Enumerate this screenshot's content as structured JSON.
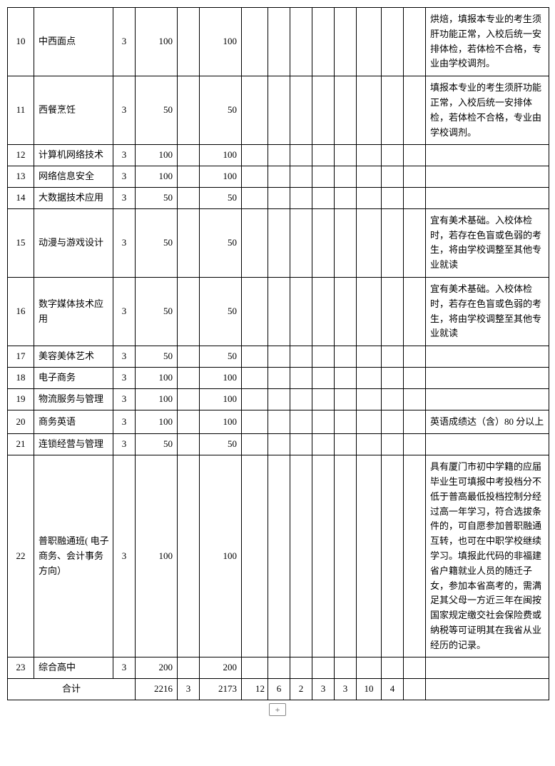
{
  "rows": [
    {
      "idx": "10",
      "name": "中西面点",
      "a": "3",
      "b": "100",
      "c": "",
      "d": "100",
      "e": "",
      "f": "",
      "g": "",
      "h": "",
      "i": "",
      "j": "",
      "k": "",
      "l": "",
      "remark": "烘焙，填报本专业的考生须肝功能正常，入校后统一安排体检，若体检不合格，专业由学校调剂。"
    },
    {
      "idx": "11",
      "name": "西餐烹饪",
      "a": "3",
      "b": "50",
      "c": "",
      "d": "50",
      "e": "",
      "f": "",
      "g": "",
      "h": "",
      "i": "",
      "j": "",
      "k": "",
      "l": "",
      "remark": "填报本专业的考生须肝功能正常，入校后统一安排体检，若体检不合格，专业由学校调剂。"
    },
    {
      "idx": "12",
      "name": "计算机网络技术",
      "a": "3",
      "b": "100",
      "c": "",
      "d": "100",
      "e": "",
      "f": "",
      "g": "",
      "h": "",
      "i": "",
      "j": "",
      "k": "",
      "l": "",
      "remark": ""
    },
    {
      "idx": "13",
      "name": "网络信息安全",
      "a": "3",
      "b": "100",
      "c": "",
      "d": "100",
      "e": "",
      "f": "",
      "g": "",
      "h": "",
      "i": "",
      "j": "",
      "k": "",
      "l": "",
      "remark": ""
    },
    {
      "idx": "14",
      "name": "大数据技术应用",
      "a": "3",
      "b": "50",
      "c": "",
      "d": "50",
      "e": "",
      "f": "",
      "g": "",
      "h": "",
      "i": "",
      "j": "",
      "k": "",
      "l": "",
      "remark": ""
    },
    {
      "idx": "15",
      "name": "动漫与游戏设计",
      "a": "3",
      "b": "50",
      "c": "",
      "d": "50",
      "e": "",
      "f": "",
      "g": "",
      "h": "",
      "i": "",
      "j": "",
      "k": "",
      "l": "",
      "remark": "宜有美术基础。入校体检时，若存在色盲或色弱的考生，将由学校调整至其他专业就读"
    },
    {
      "idx": "16",
      "name": "数字媒体技术应用",
      "a": "3",
      "b": "50",
      "c": "",
      "d": "50",
      "e": "",
      "f": "",
      "g": "",
      "h": "",
      "i": "",
      "j": "",
      "k": "",
      "l": "",
      "remark": "宜有美术基础。入校体检时，若存在色盲或色弱的考生，将由学校调整至其他专业就读"
    },
    {
      "idx": "17",
      "name": "美容美体艺术",
      "a": "3",
      "b": "50",
      "c": "",
      "d": "50",
      "e": "",
      "f": "",
      "g": "",
      "h": "",
      "i": "",
      "j": "",
      "k": "",
      "l": "",
      "remark": ""
    },
    {
      "idx": "18",
      "name": "电子商务",
      "a": "3",
      "b": "100",
      "c": "",
      "d": "100",
      "e": "",
      "f": "",
      "g": "",
      "h": "",
      "i": "",
      "j": "",
      "k": "",
      "l": "",
      "remark": ""
    },
    {
      "idx": "19",
      "name": "物流服务与管理",
      "a": "3",
      "b": "100",
      "c": "",
      "d": "100",
      "e": "",
      "f": "",
      "g": "",
      "h": "",
      "i": "",
      "j": "",
      "k": "",
      "l": "",
      "remark": ""
    },
    {
      "idx": "20",
      "name": "商务英语",
      "a": "3",
      "b": "100",
      "c": "",
      "d": "100",
      "e": "",
      "f": "",
      "g": "",
      "h": "",
      "i": "",
      "j": "",
      "k": "",
      "l": "",
      "remark": "英语成绩达（含）80 分以上"
    },
    {
      "idx": "21",
      "name": "连锁经营与管理",
      "a": "3",
      "b": "50",
      "c": "",
      "d": "50",
      "e": "",
      "f": "",
      "g": "",
      "h": "",
      "i": "",
      "j": "",
      "k": "",
      "l": "",
      "remark": ""
    },
    {
      "idx": "22",
      "name": "普职融通班( 电子商务、会计事务方向）",
      "a": "3",
      "b": "100",
      "c": "",
      "d": "100",
      "e": "",
      "f": "",
      "g": "",
      "h": "",
      "i": "",
      "j": "",
      "k": "",
      "l": "",
      "remark": "具有厦门市初中学籍的应届毕业生可填报中考投档分不低于普高最低投档控制分经过高一年学习，符合选拔条件的，可自愿参加普职融通互转，也可在中职学校继续学习。填报此代码的非福建省户籍就业人员的随迁子女，参加本省高考的，需满足其父母一方近三年在闽按国家规定缴交社会保险费或纳税等可证明其在我省从业经历的记录。"
    },
    {
      "idx": "23",
      "name": "综合高中",
      "a": "3",
      "b": "200",
      "c": "",
      "d": "200",
      "e": "",
      "f": "",
      "g": "",
      "h": "",
      "i": "",
      "j": "",
      "k": "",
      "l": "",
      "remark": ""
    }
  ],
  "total": {
    "label": "合计",
    "b": "2216",
    "c": "3",
    "d": "2173",
    "e": "12",
    "f": "6",
    "g": "2",
    "h": "3",
    "i": "3",
    "j": "10",
    "k": "4",
    "l": "",
    "remark": ""
  },
  "footer_symbol": "+"
}
